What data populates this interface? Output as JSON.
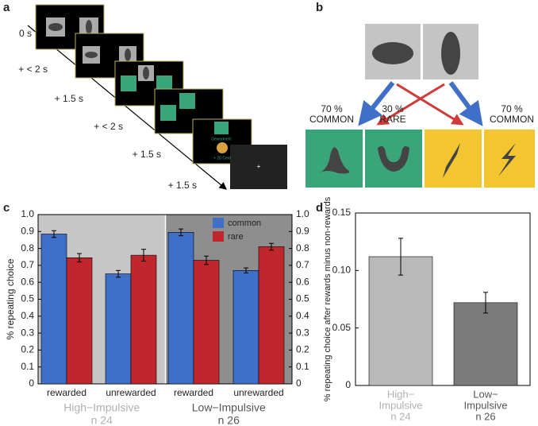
{
  "panels": {
    "a": {
      "label": "a",
      "times": [
        "0 s",
        "+ < 2 s",
        "+ 1.5 s",
        "+ < 2 s",
        "+ 1.5 s",
        "+ 1.5 s"
      ],
      "reward_text": "Gewonnen!",
      "reward_amount": "+ 20 Cent"
    },
    "b": {
      "label": "b",
      "transitions": [
        {
          "percent": "70 %",
          "name": "COMMON"
        },
        {
          "percent": "30 %",
          "name": "RARE"
        },
        {
          "percent": "70 %",
          "name": "COMMON"
        }
      ]
    }
  },
  "chart_data": [
    {
      "type": "bar",
      "label": "c",
      "ylabel": "% repeating choice",
      "categories": [
        "rewarded",
        "unrewarded",
        "rewarded",
        "unrewarded"
      ],
      "groups": [
        {
          "name": "High−Impulsive",
          "n": "n 24",
          "color": "#c6c6c6",
          "text_color": "#b0b0b0"
        },
        {
          "name": "Low−Impulsive",
          "n": "n 26",
          "color": "#8e8e8e",
          "text_color": "#555555"
        }
      ],
      "series": [
        {
          "name": "common",
          "color": "#3f6fc6",
          "values": [
            0.885,
            0.65,
            0.895,
            0.67
          ],
          "errors": [
            0.02,
            0.02,
            0.02,
            0.015
          ]
        },
        {
          "name": "rare",
          "color": "#c0272d",
          "values": [
            0.745,
            0.76,
            0.73,
            0.81
          ],
          "errors": [
            0.025,
            0.035,
            0.025,
            0.02
          ]
        }
      ],
      "ylim": [
        0,
        1
      ],
      "yticks": [
        0,
        0.1,
        0.2,
        0.3,
        0.4,
        0.5,
        0.6,
        0.7,
        0.8,
        0.9,
        {
          "value": 1,
          "label": "1.0"
        }
      ],
      "y2lim": [
        0,
        1
      ],
      "y2ticks": [
        0,
        0.1,
        0.2,
        0.3,
        0.4,
        0.5,
        0.6,
        0.7,
        0.8,
        0.9,
        {
          "value": 1,
          "label": "1.0"
        }
      ],
      "legend": "top"
    },
    {
      "type": "bar",
      "label": "d",
      "ylabel": "% repeating choice after rewards minus non-rewards",
      "categories": [
        [
          "High−",
          "Impulsive",
          "n 24"
        ],
        [
          "Low−",
          "Impulsive",
          "n 26"
        ]
      ],
      "category_colors": [
        "#b0b0b0",
        "#555555"
      ],
      "colors": [
        "#b9b9b9",
        "#7b7b7b"
      ],
      "values": [
        0.112,
        0.072
      ],
      "errors": [
        0.016,
        0.009
      ],
      "ylim": [
        0,
        0.15
      ],
      "yticks": [
        0,
        {
          "value": 0.05,
          "label": "0.05"
        },
        {
          "value": 0.1,
          "label": "0.10"
        },
        {
          "value": 0.15,
          "label": "0.15"
        }
      ]
    }
  ]
}
